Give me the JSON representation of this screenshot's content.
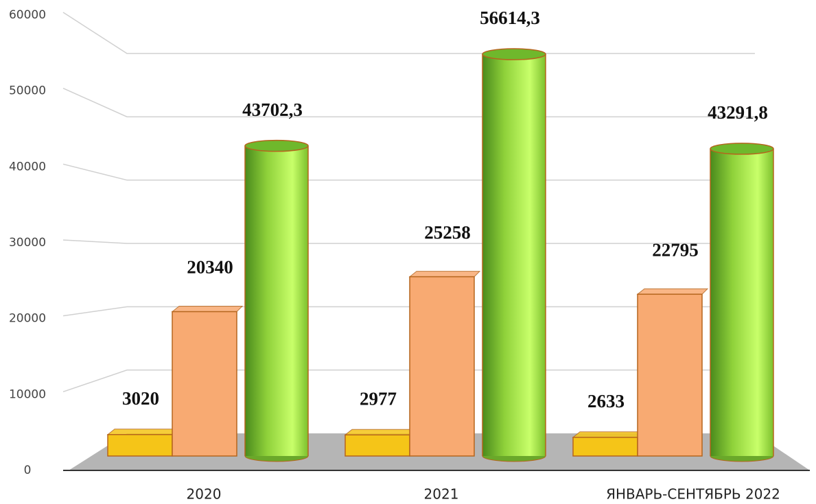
{
  "chart_data": {
    "type": "bar3d",
    "categories": [
      "2020",
      "2021",
      "ЯНВАРЬ-СЕНТЯБРЬ 2022"
    ],
    "series": [
      {
        "color": "#f5c518",
        "values": [
          3020,
          2977,
          2633
        ]
      },
      {
        "color": "#f8aa72",
        "values": [
          20340,
          25258,
          22795
        ]
      },
      {
        "color": "#8fd13a",
        "values": [
          43702.3,
          56614.3,
          43291.8
        ],
        "value_labels": [
          "43702,3",
          "56614,3",
          "43291,8"
        ]
      }
    ],
    "ylim": [
      0,
      60000
    ],
    "yticks": [
      0,
      10000,
      20000,
      30000,
      40000,
      50000,
      60000
    ],
    "grid": true
  }
}
